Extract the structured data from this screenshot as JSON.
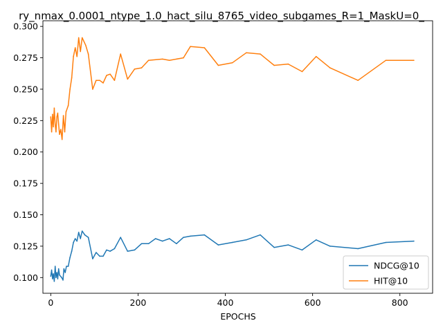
{
  "chart_data": {
    "type": "line",
    "title": "ry_nmax_0.0001_ntype_1.0_hact_silu_8765_video_subgames_R=1_MaskU=0_",
    "xlabel": "EPOCHS",
    "ylabel": "",
    "xlim": [
      -18,
      875
    ],
    "ylim": [
      0.0875,
      0.3045
    ],
    "xticks": [
      0,
      200,
      400,
      600,
      800
    ],
    "yticks": [
      0.1,
      0.125,
      0.15,
      0.175,
      0.2,
      0.225,
      0.25,
      0.275,
      0.3
    ],
    "ytick_labels": [
      "0.100",
      "0.125",
      "0.150",
      "0.175",
      "0.200",
      "0.225",
      "0.250",
      "0.275",
      "0.300"
    ],
    "grid": false,
    "legend_position": "lower-right",
    "series": [
      {
        "name": "NDCG@10",
        "color": "#1f77b4",
        "points": [
          [
            0,
            0.101
          ],
          [
            2,
            0.106
          ],
          [
            4,
            0.099
          ],
          [
            6,
            0.103
          ],
          [
            8,
            0.097
          ],
          [
            10,
            0.109
          ],
          [
            12,
            0.1
          ],
          [
            14,
            0.104
          ],
          [
            16,
            0.099
          ],
          [
            18,
            0.107
          ],
          [
            20,
            0.102
          ],
          [
            25,
            0.1
          ],
          [
            28,
            0.098
          ],
          [
            30,
            0.107
          ],
          [
            33,
            0.104
          ],
          [
            36,
            0.109
          ],
          [
            40,
            0.109
          ],
          [
            44,
            0.116
          ],
          [
            48,
            0.121
          ],
          [
            52,
            0.128
          ],
          [
            56,
            0.131
          ],
          [
            60,
            0.129
          ],
          [
            64,
            0.136
          ],
          [
            68,
            0.131
          ],
          [
            72,
            0.137
          ],
          [
            78,
            0.134
          ],
          [
            86,
            0.132
          ],
          [
            96,
            0.115
          ],
          [
            104,
            0.12
          ],
          [
            112,
            0.117
          ],
          [
            120,
            0.117
          ],
          [
            128,
            0.122
          ],
          [
            136,
            0.121
          ],
          [
            146,
            0.123
          ],
          [
            160,
            0.132
          ],
          [
            176,
            0.121
          ],
          [
            192,
            0.122
          ],
          [
            208,
            0.127
          ],
          [
            224,
            0.127
          ],
          [
            240,
            0.131
          ],
          [
            256,
            0.129
          ],
          [
            272,
            0.131
          ],
          [
            288,
            0.127
          ],
          [
            304,
            0.132
          ],
          [
            320,
            0.133
          ],
          [
            352,
            0.134
          ],
          [
            384,
            0.126
          ],
          [
            416,
            0.128
          ],
          [
            448,
            0.13
          ],
          [
            480,
            0.134
          ],
          [
            512,
            0.124
          ],
          [
            544,
            0.126
          ],
          [
            576,
            0.122
          ],
          [
            608,
            0.13
          ],
          [
            640,
            0.125
          ],
          [
            704,
            0.123
          ],
          [
            768,
            0.128
          ],
          [
            832,
            0.129
          ]
        ]
      },
      {
        "name": "HIT@10",
        "color": "#ff7f0e",
        "points": [
          [
            0,
            0.228
          ],
          [
            2,
            0.216
          ],
          [
            4,
            0.23
          ],
          [
            6,
            0.22
          ],
          [
            8,
            0.235
          ],
          [
            10,
            0.222
          ],
          [
            12,
            0.216
          ],
          [
            14,
            0.228
          ],
          [
            16,
            0.231
          ],
          [
            18,
            0.222
          ],
          [
            20,
            0.214
          ],
          [
            23,
            0.218
          ],
          [
            26,
            0.21
          ],
          [
            29,
            0.229
          ],
          [
            32,
            0.216
          ],
          [
            35,
            0.232
          ],
          [
            40,
            0.237
          ],
          [
            44,
            0.25
          ],
          [
            48,
            0.259
          ],
          [
            52,
            0.276
          ],
          [
            56,
            0.283
          ],
          [
            60,
            0.276
          ],
          [
            64,
            0.291
          ],
          [
            68,
            0.28
          ],
          [
            72,
            0.291
          ],
          [
            80,
            0.285
          ],
          [
            86,
            0.278
          ],
          [
            96,
            0.25
          ],
          [
            104,
            0.257
          ],
          [
            112,
            0.257
          ],
          [
            120,
            0.255
          ],
          [
            128,
            0.261
          ],
          [
            136,
            0.262
          ],
          [
            146,
            0.257
          ],
          [
            160,
            0.278
          ],
          [
            176,
            0.258
          ],
          [
            192,
            0.266
          ],
          [
            208,
            0.267
          ],
          [
            224,
            0.273
          ],
          [
            256,
            0.274
          ],
          [
            272,
            0.273
          ],
          [
            304,
            0.275
          ],
          [
            320,
            0.284
          ],
          [
            352,
            0.283
          ],
          [
            384,
            0.269
          ],
          [
            416,
            0.271
          ],
          [
            448,
            0.279
          ],
          [
            480,
            0.278
          ],
          [
            512,
            0.269
          ],
          [
            544,
            0.27
          ],
          [
            576,
            0.264
          ],
          [
            608,
            0.276
          ],
          [
            640,
            0.267
          ],
          [
            704,
            0.257
          ],
          [
            768,
            0.273
          ],
          [
            832,
            0.273
          ]
        ]
      }
    ]
  }
}
